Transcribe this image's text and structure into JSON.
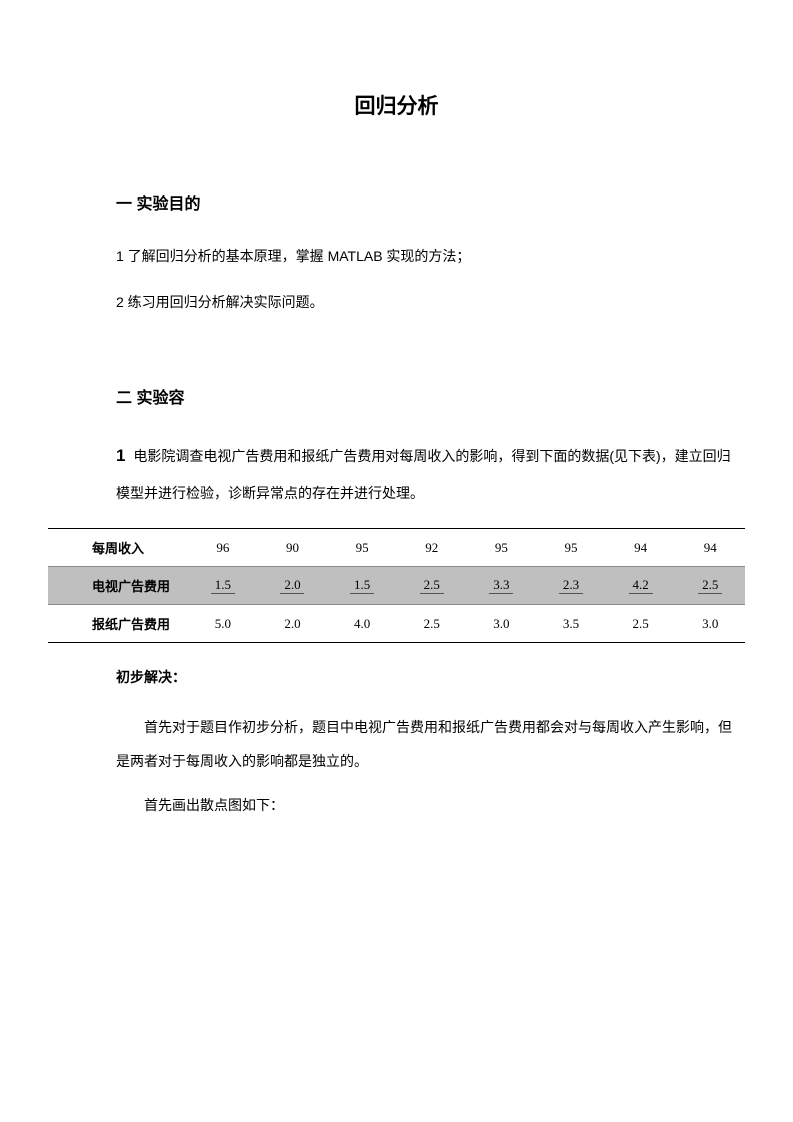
{
  "title": "回归分析",
  "section1": {
    "heading": "一 实验目的",
    "p1": "1 了解回归分析的基本原理，掌握 MATLAB 实现的方法；",
    "p2": "2 练习用回归分析解决实际问题。"
  },
  "section2": {
    "heading": "二 实验容",
    "problem_num": "1",
    "problem_text": "电影院调查电视广告费用和报纸广告费用对每周收入的影响，得到下面的数据(见下表)，建立回归模型并进行检验，诊断异常点的存在并进行处理。"
  },
  "table": {
    "rows": [
      {
        "label": "每周收入",
        "vals": [
          "96",
          "90",
          "95",
          "92",
          "95",
          "95",
          "94",
          "94"
        ],
        "style": "top"
      },
      {
        "label": "电视广告费用",
        "vals": [
          "1.5",
          "2.0",
          "1.5",
          "2.5",
          "3.3",
          "2.3",
          "4.2",
          "2.5"
        ],
        "style": "gray"
      },
      {
        "label": "报纸广告费用",
        "vals": [
          "5.0",
          "2.0",
          "4.0",
          "2.5",
          "3.0",
          "3.5",
          "2.5",
          "3.0"
        ],
        "style": "bot"
      }
    ],
    "colors": {
      "gray_bg": "#bfbfbf",
      "border": "#000000"
    }
  },
  "solution": {
    "heading": "初步解决：",
    "p1": "首先对于题目作初步分析，题目中电视广告费用和报纸广告费用都会对与每周收入产生影响，但是两者对于每周收入的影响都是独立的。",
    "p2": "首先画出散点图如下："
  }
}
